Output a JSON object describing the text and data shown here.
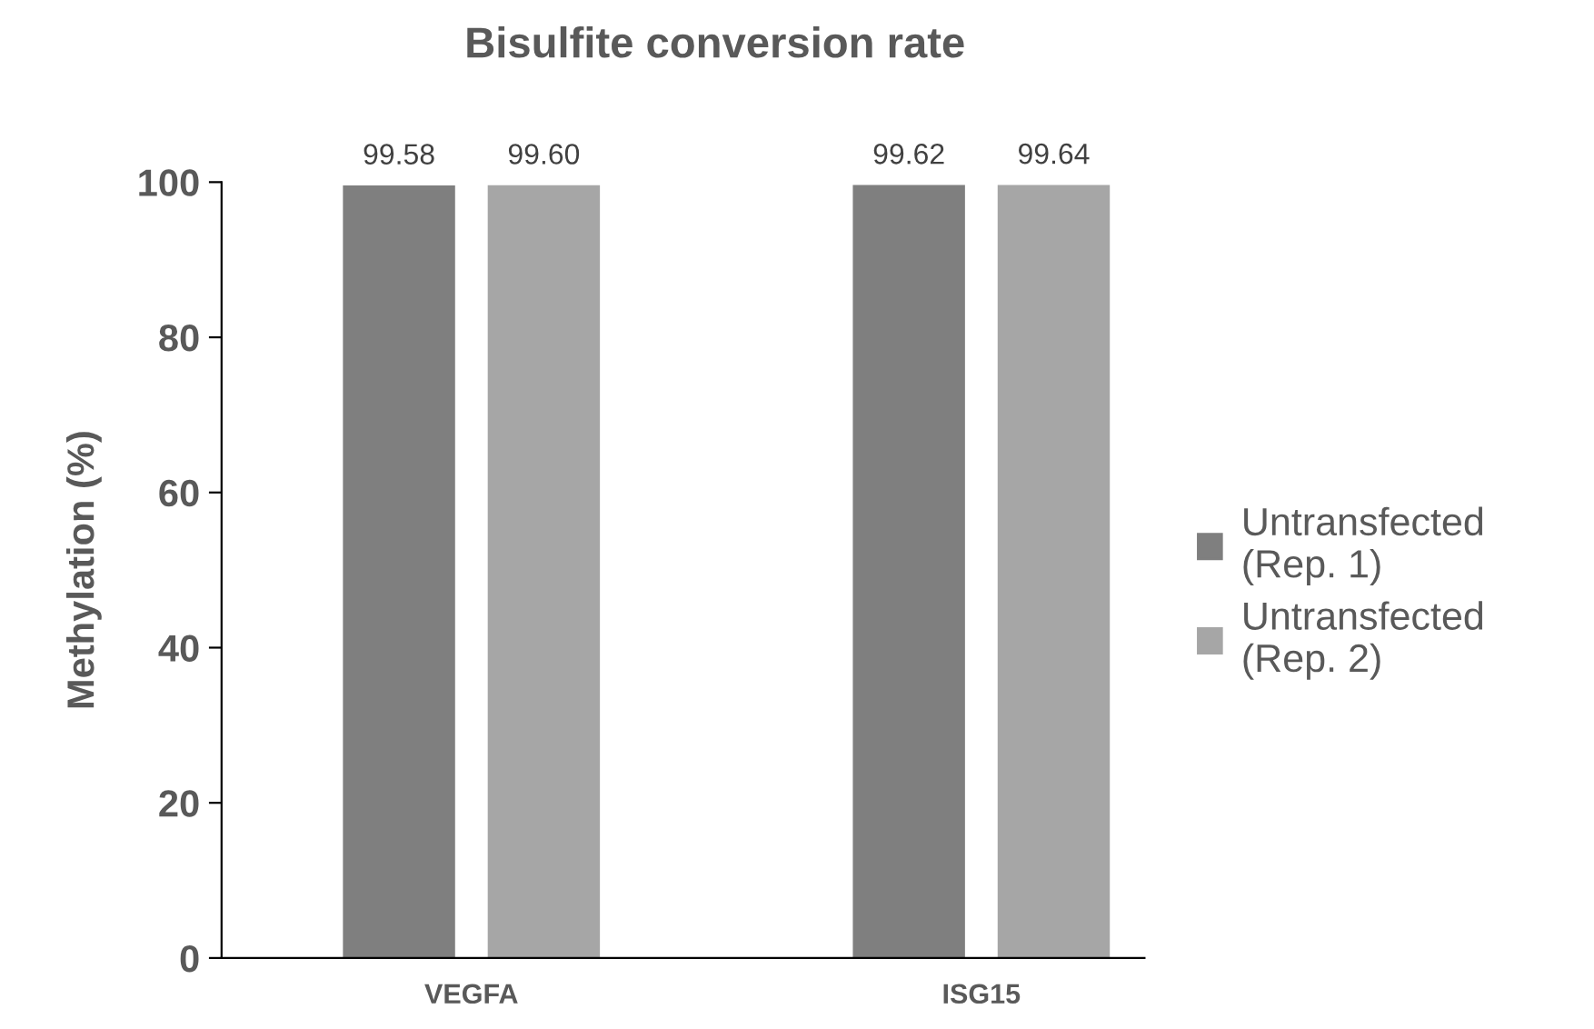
{
  "chart_data": {
    "type": "bar",
    "title": "Bisulfite conversion rate",
    "ylabel": "Methylation (%)",
    "categories": [
      "VEGFA",
      "ISG15"
    ],
    "series": [
      {
        "name": "Untransfected\n(Rep. 1)",
        "color": "#7f7f7f",
        "values": [
          99.58,
          99.62
        ]
      },
      {
        "name": "Untransfected\n(Rep. 2)",
        "color": "#a6a6a6",
        "values": [
          99.6,
          99.64
        ]
      }
    ],
    "value_labels": [
      [
        "99.58",
        "99.62"
      ],
      [
        "99.60",
        "99.64"
      ]
    ],
    "ylim": [
      0,
      100
    ],
    "yticks": [
      0,
      20,
      40,
      60,
      80,
      100
    ],
    "grid": false,
    "legend": "right"
  }
}
